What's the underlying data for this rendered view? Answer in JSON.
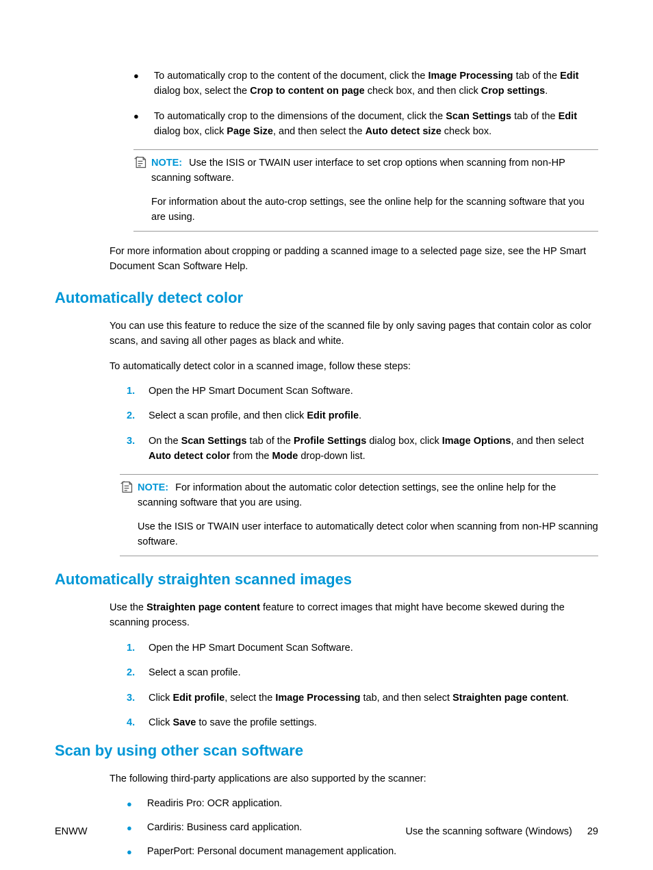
{
  "colors": {
    "accent": "#0096d6",
    "text": "#000000",
    "border": "#999999",
    "background": "#ffffff"
  },
  "typography": {
    "body_fontsize": 14.5,
    "heading_fontsize": 22,
    "font_family": "Arial"
  },
  "top_bullets": [
    {
      "parts": [
        {
          "t": "To automatically crop to the content of the document, click the ",
          "b": false
        },
        {
          "t": "Image Processing",
          "b": true
        },
        {
          "t": " tab of the ",
          "b": false
        },
        {
          "t": "Edit",
          "b": true
        },
        {
          "t": " dialog box, select the ",
          "b": false
        },
        {
          "t": "Crop to content on page",
          "b": true
        },
        {
          "t": " check box, and then click ",
          "b": false
        },
        {
          "t": "Crop settings",
          "b": true
        },
        {
          "t": ".",
          "b": false
        }
      ]
    },
    {
      "parts": [
        {
          "t": "To automatically crop to the dimensions of the document, click the ",
          "b": false
        },
        {
          "t": "Scan Settings",
          "b": true
        },
        {
          "t": " tab of the ",
          "b": false
        },
        {
          "t": "Edit",
          "b": true
        },
        {
          "t": " dialog box, click ",
          "b": false
        },
        {
          "t": "Page Size",
          "b": true
        },
        {
          "t": ", and then select the ",
          "b": false
        },
        {
          "t": "Auto detect size",
          "b": true
        },
        {
          "t": " check box.",
          "b": false
        }
      ]
    }
  ],
  "note1": {
    "label": "NOTE:",
    "text": "Use the ISIS or TWAIN user interface to set crop options when scanning from non-HP scanning software.",
    "para": "For information about the auto-crop settings, see the online help for the scanning software that you are using."
  },
  "para_after_note1": "For more information about cropping or padding a scanned image to a selected page size, see the HP Smart Document Scan Software Help.",
  "section1": {
    "heading": "Automatically detect color",
    "para1": "You can use this feature to reduce the size of the scanned file by only saving pages that contain color as color scans, and saving all other pages as black and white.",
    "para2": "To automatically detect color in a scanned image, follow these steps:",
    "steps": [
      {
        "n": "1.",
        "parts": [
          {
            "t": "Open the HP Smart Document Scan Software.",
            "b": false
          }
        ]
      },
      {
        "n": "2.",
        "parts": [
          {
            "t": "Select a scan profile, and then click ",
            "b": false
          },
          {
            "t": "Edit profile",
            "b": true
          },
          {
            "t": ".",
            "b": false
          }
        ]
      },
      {
        "n": "3.",
        "parts": [
          {
            "t": "On the ",
            "b": false
          },
          {
            "t": "Scan Settings",
            "b": true
          },
          {
            "t": " tab of the ",
            "b": false
          },
          {
            "t": "Profile Settings",
            "b": true
          },
          {
            "t": " dialog box, click ",
            "b": false
          },
          {
            "t": "Image Options",
            "b": true
          },
          {
            "t": ", and then select ",
            "b": false
          },
          {
            "t": "Auto detect color",
            "b": true
          },
          {
            "t": " from the ",
            "b": false
          },
          {
            "t": "Mode",
            "b": true
          },
          {
            "t": " drop-down list.",
            "b": false
          }
        ]
      }
    ],
    "note": {
      "label": "NOTE:",
      "text": "For information about the automatic color detection settings, see the online help for the scanning software that you are using.",
      "para": "Use the ISIS or TWAIN user interface to automatically detect color when scanning from non-HP scanning software."
    }
  },
  "section2": {
    "heading": "Automatically straighten scanned images",
    "para_parts": [
      {
        "t": "Use the ",
        "b": false
      },
      {
        "t": "Straighten page content",
        "b": true
      },
      {
        "t": " feature to correct images that might have become skewed during the scanning process.",
        "b": false
      }
    ],
    "steps": [
      {
        "n": "1.",
        "parts": [
          {
            "t": "Open the HP Smart Document Scan Software.",
            "b": false
          }
        ]
      },
      {
        "n": "2.",
        "parts": [
          {
            "t": "Select a scan profile.",
            "b": false
          }
        ]
      },
      {
        "n": "3.",
        "parts": [
          {
            "t": "Click ",
            "b": false
          },
          {
            "t": "Edit profile",
            "b": true
          },
          {
            "t": ", select the ",
            "b": false
          },
          {
            "t": "Image Processing",
            "b": true
          },
          {
            "t": " tab, and then select ",
            "b": false
          },
          {
            "t": "Straighten page content",
            "b": true
          },
          {
            "t": ".",
            "b": false
          }
        ]
      },
      {
        "n": "4.",
        "parts": [
          {
            "t": "Click ",
            "b": false
          },
          {
            "t": "Save",
            "b": true
          },
          {
            "t": " to save the profile settings.",
            "b": false
          }
        ]
      }
    ]
  },
  "section3": {
    "heading": "Scan by using other scan software",
    "para": "The following third-party applications are also supported by the scanner:",
    "bullets": [
      "Readiris Pro: OCR application.",
      "Cardiris: Business card application.",
      "PaperPort: Personal document management application."
    ]
  },
  "footer": {
    "left": "ENWW",
    "right": "Use the scanning software (Windows)",
    "page": "29"
  }
}
